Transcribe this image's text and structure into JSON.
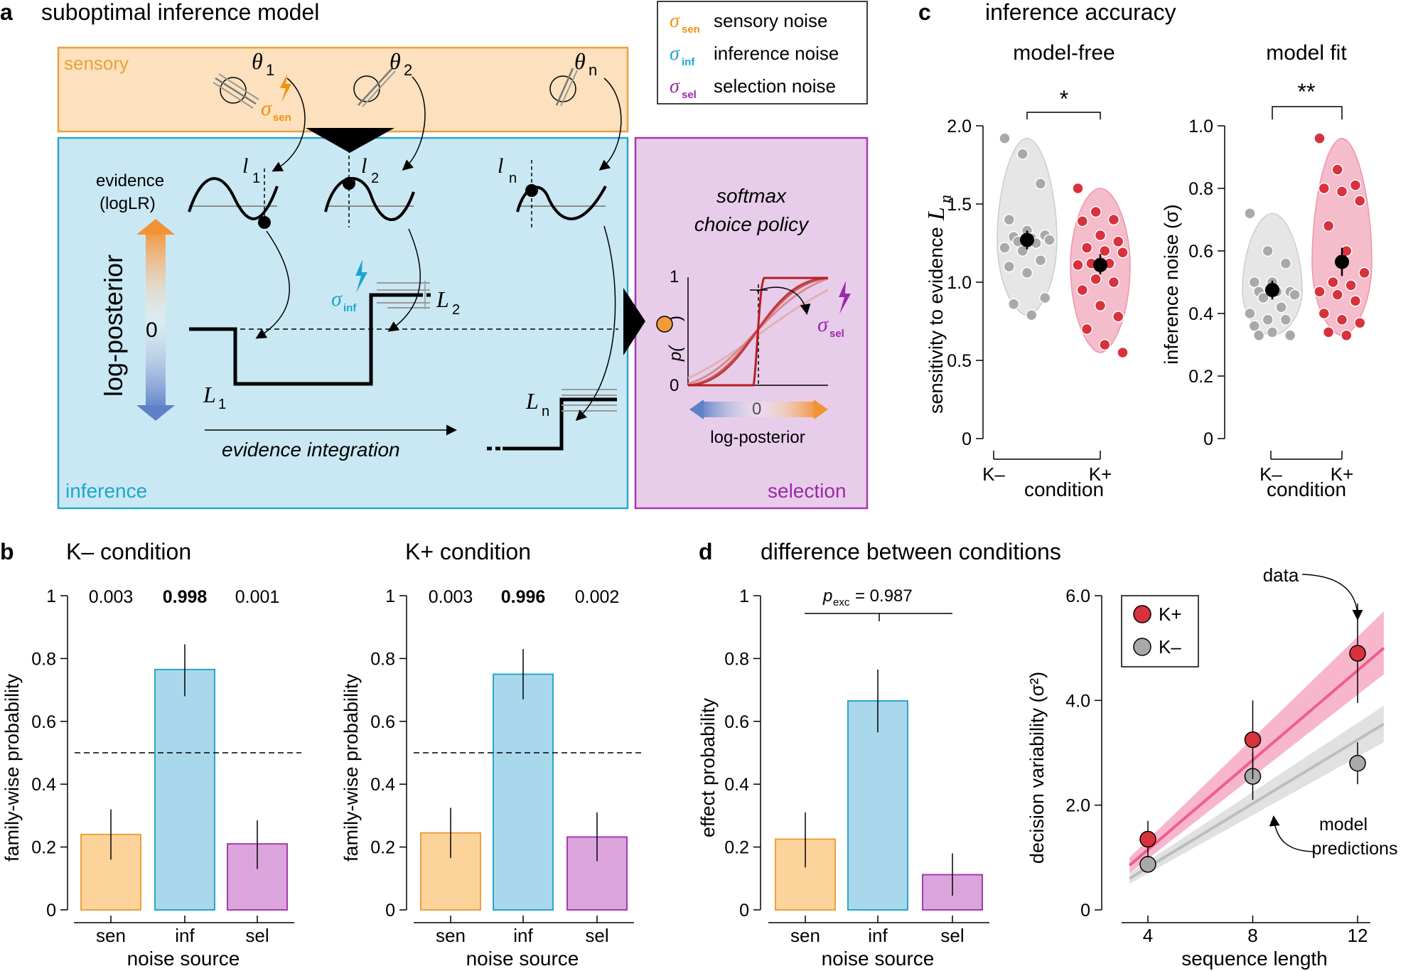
{
  "colors": {
    "sensory_fill": "#fde0bd",
    "sensory_stroke": "#e8a23c",
    "sensory_accent": "#f0920f",
    "inference_fill": "#c9e8f3",
    "inference_stroke": "#2aa6c6",
    "inference_accent": "#1da5cf",
    "selection_fill": "#e8cdea",
    "selection_stroke": "#a43ab0",
    "selection_accent": "#9a2aa6",
    "bar_sen": "#fdd39c",
    "bar_inf": "#a9d8ec",
    "bar_sel": "#dba5dc",
    "kplus": "#d8323c",
    "kplus_band": "#f6a9c3",
    "kplus_line": "#ef5e8c",
    "kminus": "#a9a9a9",
    "kminus_band": "#dcdcdc",
    "kminus_line": "#bdbdbd"
  },
  "panel_a": {
    "letter": "a",
    "title": "suboptimal inference model",
    "legend": [
      {
        "symbol": "σ",
        "sub": "sen",
        "label": "sensory noise"
      },
      {
        "symbol": "σ",
        "sub": "inf",
        "label": "inference noise"
      },
      {
        "symbol": "σ",
        "sub": "sel",
        "label": "selection noise"
      }
    ],
    "sensory_label": "sensory",
    "inference_label": "inference",
    "selection_label": "selection",
    "theta1": "θ",
    "theta1_sub": "1",
    "theta2": "θ",
    "theta2_sub": "2",
    "thetan": "θ",
    "thetan_sub": "n",
    "sigma_sen": "σ",
    "sigma_sen_sub": "sen",
    "sigma_inf": "σ",
    "sigma_inf_sub": "inf",
    "sigma_sel": "σ",
    "sigma_sel_sub": "sel",
    "evidence_label_1": "evidence",
    "evidence_label_2": "(logLR)",
    "l1": "l",
    "l1_sub": "1",
    "l2": "l",
    "l2_sub": "2",
    "ln": "l",
    "ln_sub": "n",
    "log_posterior": "log-posterior",
    "zero": "0",
    "L1": "L",
    "L1_sub": "1",
    "L2": "L",
    "L2_sub": "2",
    "Ln": "L",
    "Ln_sub": "n",
    "evidence_integration": "evidence integration",
    "softmax_1": "softmax",
    "softmax_2": "choice policy",
    "p_label": "p(",
    "p_close": ")",
    "axis_one": "1",
    "axis_zero": "0",
    "axis_x_zero": "0",
    "x_axis_label": "log-posterior"
  },
  "panel_c": {
    "letter": "c",
    "title": "inference accuracy",
    "left": {
      "subtitle": "model-free",
      "ylabel": "sensitivity to evidence ",
      "ylabel_sym": "L",
      "ylabel_sub": "n",
      "ticks": [
        "0",
        "0.5",
        "1.0",
        "1.5",
        "2.0"
      ],
      "sig": "*",
      "categories": [
        "K–",
        "K+"
      ],
      "xlabel": "condition"
    },
    "right": {
      "subtitle": "model fit",
      "ylabel": "inference noise (σ)",
      "ticks": [
        "0",
        "0.2",
        "0.4",
        "0.6",
        "0.8",
        "1.0"
      ],
      "sig": "**",
      "categories": [
        "K–",
        "K+"
      ],
      "xlabel": "condition"
    }
  },
  "panel_b": {
    "letter": "b",
    "left": {
      "title": "K– condition",
      "probs": [
        "0.003",
        "0.998",
        "0.001"
      ]
    },
    "right": {
      "title": "K+ condition",
      "probs": [
        "0.003",
        "0.996",
        "0.002"
      ]
    },
    "ylabel": "family-wise probability",
    "ticks": [
      "0",
      "0.2",
      "0.4",
      "0.6",
      "0.8",
      "1"
    ],
    "categories": [
      "sen",
      "inf",
      "sel"
    ],
    "xlabel": "noise source"
  },
  "panel_d": {
    "letter": "d",
    "title": "difference between conditions",
    "left": {
      "ylabel": "effect probability",
      "ticks": [
        "0",
        "0.2",
        "0.4",
        "0.6",
        "0.8",
        "1"
      ],
      "pexc": "p",
      "pexc_sub": "exc",
      "pexc_val": " = 0.987",
      "categories": [
        "sen",
        "inf",
        "sel"
      ],
      "xlabel": "noise source"
    },
    "right": {
      "ylabel": "decision variability (σ²)",
      "xlabel": "sequence length",
      "yticks": [
        "0",
        "2.0",
        "4.0",
        "6.0"
      ],
      "xticks": [
        "4",
        "8",
        "12"
      ],
      "legend": [
        "K+",
        "K–"
      ],
      "annot_data": "data",
      "annot_model_1": "model",
      "annot_model_2": "predictions"
    }
  },
  "chart_data": [
    {
      "type": "bar",
      "panel": "b-left",
      "title": "K– condition",
      "categories": [
        "sen",
        "inf",
        "sel"
      ],
      "values": [
        0.24,
        0.765,
        0.21
      ],
      "errors": [
        [
          0.16,
          0.32
        ],
        [
          0.68,
          0.845
        ],
        [
          0.13,
          0.285
        ]
      ],
      "ylabel": "family-wise probability",
      "xlabel": "noise source",
      "ylim": [
        0,
        1
      ],
      "reference_line": 0.5
    },
    {
      "type": "bar",
      "panel": "b-right",
      "title": "K+ condition",
      "categories": [
        "sen",
        "inf",
        "sel"
      ],
      "values": [
        0.245,
        0.75,
        0.232
      ],
      "errors": [
        [
          0.165,
          0.325
        ],
        [
          0.67,
          0.83
        ],
        [
          0.155,
          0.31
        ]
      ],
      "ylabel": "family-wise probability",
      "xlabel": "noise source",
      "ylim": [
        0,
        1
      ],
      "reference_line": 0.5
    },
    {
      "type": "bar",
      "panel": "d-left",
      "categories": [
        "sen",
        "inf",
        "sel"
      ],
      "values": [
        0.225,
        0.665,
        0.112
      ],
      "errors": [
        [
          0.135,
          0.31
        ],
        [
          0.565,
          0.765
        ],
        [
          0.045,
          0.18
        ]
      ],
      "ylabel": "effect probability",
      "xlabel": "noise source",
      "ylim": [
        0,
        1
      ]
    },
    {
      "type": "scatter",
      "panel": "c-left",
      "subtitle": "model-free",
      "ylim": [
        0,
        2.0
      ],
      "categories": [
        "K–",
        "K+"
      ],
      "means": [
        1.27,
        1.11
      ],
      "mean_errors": [
        [
          1.21,
          1.33
        ],
        [
          1.05,
          1.18
        ]
      ],
      "points": {
        "K–": [
          1.92,
          1.82,
          1.63,
          1.4,
          1.33,
          1.3,
          1.29,
          1.28,
          1.27,
          1.26,
          1.25,
          1.22,
          1.2,
          1.14,
          1.1,
          1.06,
          0.9,
          0.86,
          0.79
        ],
        "K+": [
          1.6,
          1.45,
          1.4,
          1.39,
          1.3,
          1.26,
          1.22,
          1.2,
          1.19,
          1.12,
          1.12,
          1.11,
          1.02,
          1.0,
          0.95,
          0.85,
          0.78,
          0.7,
          0.6,
          0.55
        ]
      }
    },
    {
      "type": "scatter",
      "panel": "c-right",
      "subtitle": "model fit",
      "ylim": [
        0,
        1.0
      ],
      "categories": [
        "K–",
        "K+"
      ],
      "means": [
        0.475,
        0.565
      ],
      "mean_errors": [
        [
          0.445,
          0.505
        ],
        [
          0.52,
          0.61
        ]
      ],
      "points": {
        "K–": [
          0.72,
          0.6,
          0.56,
          0.5,
          0.5,
          0.47,
          0.47,
          0.47,
          0.46,
          0.45,
          0.42,
          0.4,
          0.38,
          0.38,
          0.36,
          0.34,
          0.33,
          0.33
        ],
        "K+": [
          0.96,
          0.86,
          0.81,
          0.8,
          0.79,
          0.76,
          0.68,
          0.6,
          0.53,
          0.5,
          0.49,
          0.47,
          0.46,
          0.44,
          0.4,
          0.38,
          0.37,
          0.34,
          0.33
        ]
      }
    },
    {
      "type": "line",
      "panel": "d-right",
      "xlabel": "sequence length",
      "ylabel": "decision variability (σ²)",
      "xlim": [
        3,
        13
      ],
      "ylim": [
        0,
        6.0
      ],
      "series": [
        {
          "name": "K+",
          "x": [
            4,
            8,
            12
          ],
          "y": [
            1.35,
            3.25,
            4.9
          ],
          "err": [
            [
              1.0,
              1.7
            ],
            [
              2.5,
              4.0
            ],
            [
              3.95,
              5.85
            ]
          ],
          "fit": {
            "x": [
              3.3,
              13
            ],
            "y": [
              0.85,
              5.0
            ]
          },
          "band": {
            "x": [
              3.3,
              13
            ],
            "lo": [
              0.7,
              4.5
            ],
            "hi": [
              1.0,
              5.7
            ]
          }
        },
        {
          "name": "K–",
          "x": [
            4,
            8,
            12
          ],
          "y": [
            0.87,
            2.55,
            2.8
          ],
          "err": [
            [
              0.87,
              0.87
            ],
            [
              2.1,
              3.0
            ],
            [
              2.4,
              3.2
            ]
          ],
          "fit": {
            "x": [
              3.3,
              13
            ],
            "y": [
              0.6,
              3.55
            ]
          },
          "band": {
            "x": [
              3.3,
              13
            ],
            "lo": [
              0.5,
              3.2
            ],
            "hi": [
              0.7,
              3.9
            ]
          }
        }
      ]
    }
  ]
}
